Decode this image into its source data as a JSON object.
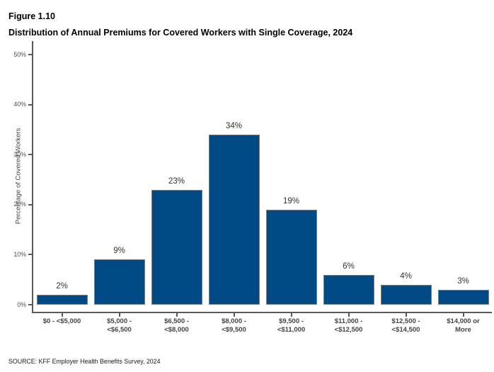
{
  "figure": {
    "label": "Figure 1.10",
    "title": "Distribution of Annual Premiums for Covered Workers with Single Coverage, 2024",
    "source": "SOURCE: KFF Employer Health Benefits Survey, 2024"
  },
  "chart_data": {
    "type": "bar",
    "title": "Distribution of Annual Premiums for Covered Workers with Single Coverage, 2024",
    "categories": [
      "$0 - <$5,000",
      "$5,000 -\n<$6,500",
      "$6,500 -\n<$8,000",
      "$8,000 -\n<$9,500",
      "$9,500 -\n<$11,000",
      "$11,000 -\n<$12,500",
      "$12,500 -\n<$14,500",
      "$14,000 or\nMore"
    ],
    "values": [
      2,
      9,
      23,
      34,
      19,
      6,
      4,
      3
    ],
    "data_labels": [
      "2%",
      "9%",
      "23%",
      "34%",
      "19%",
      "6%",
      "4%",
      "3%"
    ],
    "xlabel": "",
    "ylabel": "Percentage of Covered Workers",
    "ylim": [
      0,
      50
    ],
    "y_ticks": [
      0,
      10,
      20,
      30,
      40,
      50
    ],
    "y_tick_labels": [
      "0%",
      "10%",
      "20%",
      "30%",
      "40%",
      "50%"
    ],
    "grid": false,
    "legend": "none"
  },
  "colors": {
    "bar_fill": "#004B85",
    "bar_border": "#7F7F7F",
    "axis_line": "#595959",
    "tick_label": "#4D4D4D",
    "category_label": "#444444",
    "data_label": "#333333",
    "title_text": "#000000",
    "background": "#FFFFFF"
  }
}
